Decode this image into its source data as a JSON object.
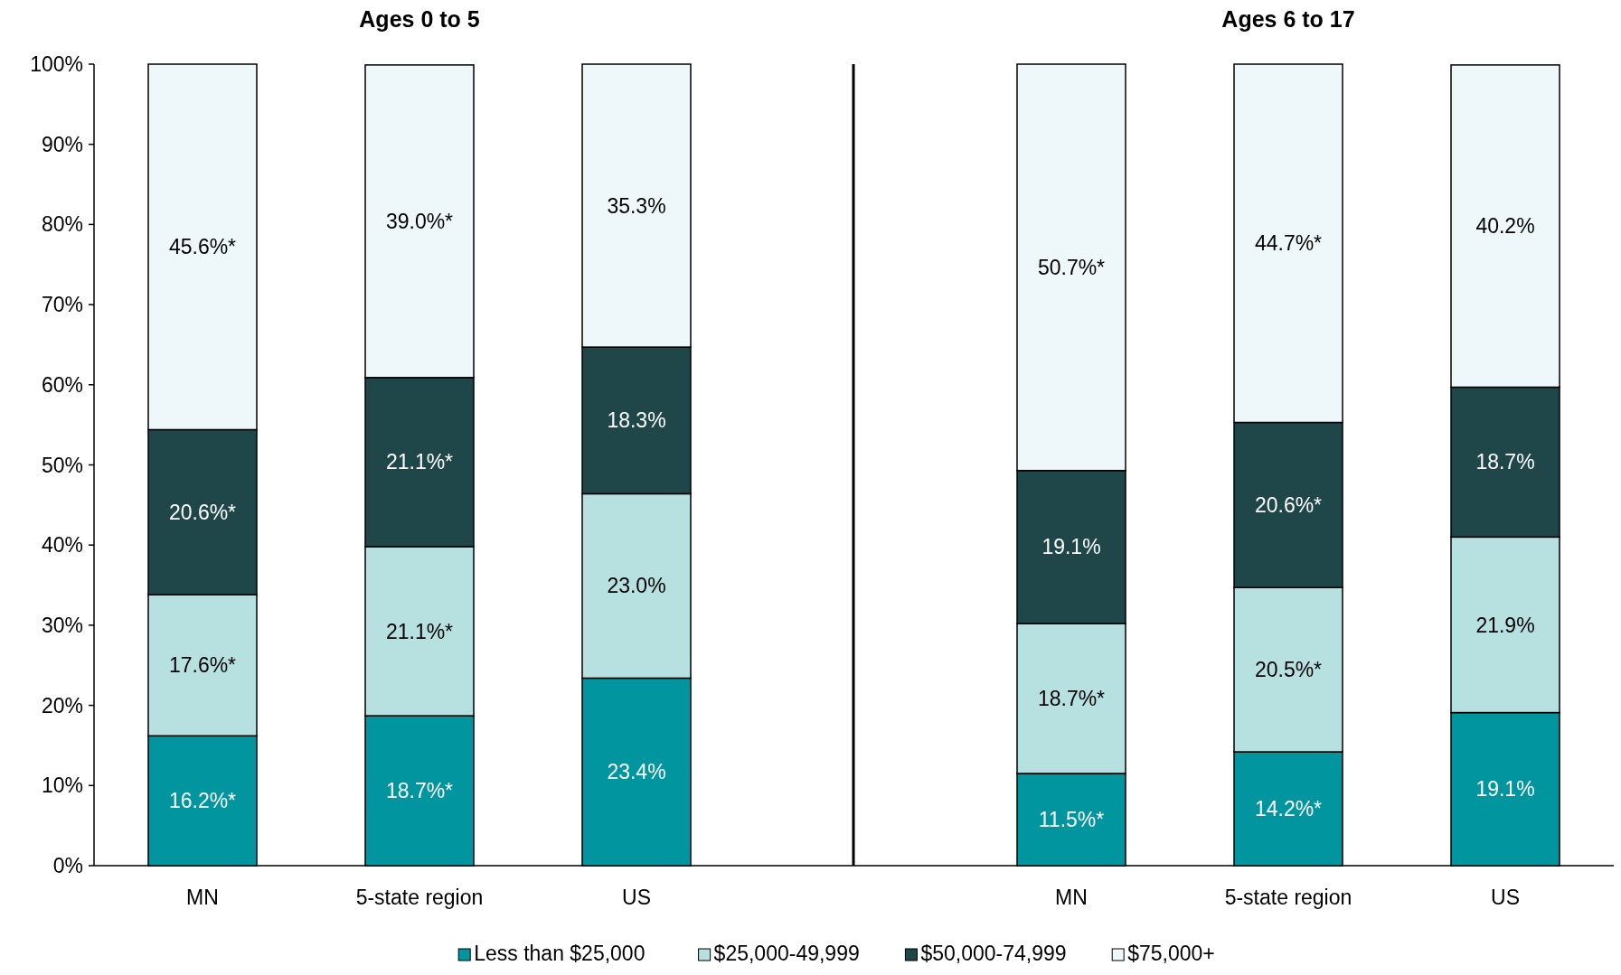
{
  "chart_data": [
    {
      "type": "bar",
      "stacked": true,
      "title": "Ages 0 to 5",
      "categories": [
        "MN",
        "5-state region",
        "US"
      ],
      "ylim": [
        0,
        100
      ],
      "yticks": [
        {
          "value": 0,
          "label": "0%"
        },
        {
          "value": 10,
          "label": "10%"
        },
        {
          "value": 20,
          "label": "20%"
        },
        {
          "value": 30,
          "label": "30%"
        },
        {
          "value": 40,
          "label": "40%"
        },
        {
          "value": 50,
          "label": "50%"
        },
        {
          "value": 60,
          "label": "60%"
        },
        {
          "value": 70,
          "label": "70%"
        },
        {
          "value": 80,
          "label": "80%"
        },
        {
          "value": 90,
          "label": "90%"
        },
        {
          "value": 100,
          "label": "100%"
        }
      ],
      "legend": "bottom",
      "grid": false,
      "series": [
        {
          "name": "Less than $25,000",
          "color": "#00959f",
          "values": [
            16.2,
            18.7,
            23.4
          ],
          "value_labels": [
            "16.2%*",
            "18.7%*",
            "23.4%"
          ]
        },
        {
          "name": "$25,000-49,999",
          "color": "#b7e0e1",
          "values": [
            17.6,
            21.1,
            23.0
          ],
          "value_labels": [
            "17.6%*",
            "21.1%*",
            "23.0%"
          ]
        },
        {
          "name": "$50,000-74,999",
          "color": "#1f474a",
          "values": [
            20.6,
            21.1,
            18.3
          ],
          "value_labels": [
            "20.6%*",
            "21.1%*",
            "18.3%"
          ]
        },
        {
          "name": "$75,000+",
          "color": "#eef7f9",
          "values": [
            45.6,
            39.0,
            35.3
          ],
          "value_labels": [
            "45.6%*",
            "39.0%*",
            "35.3%"
          ]
        }
      ]
    },
    {
      "type": "bar",
      "stacked": true,
      "title": "Ages 6 to 17",
      "categories": [
        "MN",
        "5-state region",
        "US"
      ],
      "ylim": [
        0,
        100
      ],
      "tick_labels": "x",
      "grid": false,
      "series": [
        {
          "name": "Less than $25,000",
          "color": "#00959f",
          "values": [
            11.5,
            14.2,
            19.1
          ],
          "value_labels": [
            "11.5%*",
            "14.2%*",
            "19.1%"
          ]
        },
        {
          "name": "$25,000-49,999",
          "color": "#b7e0e1",
          "values": [
            18.7,
            20.5,
            21.9
          ],
          "value_labels": [
            "18.7%*",
            "20.5%*",
            "21.9%"
          ]
        },
        {
          "name": "$50,000-74,999",
          "color": "#1f474a",
          "values": [
            19.1,
            20.6,
            18.7
          ],
          "value_labels": [
            "19.1%",
            "20.6%*",
            "18.7%"
          ]
        },
        {
          "name": "$75,000+",
          "color": "#eef7f9",
          "values": [
            50.7,
            44.7,
            40.2
          ],
          "value_labels": [
            "50.7%*",
            "44.7%*",
            "40.2%"
          ]
        }
      ]
    }
  ]
}
